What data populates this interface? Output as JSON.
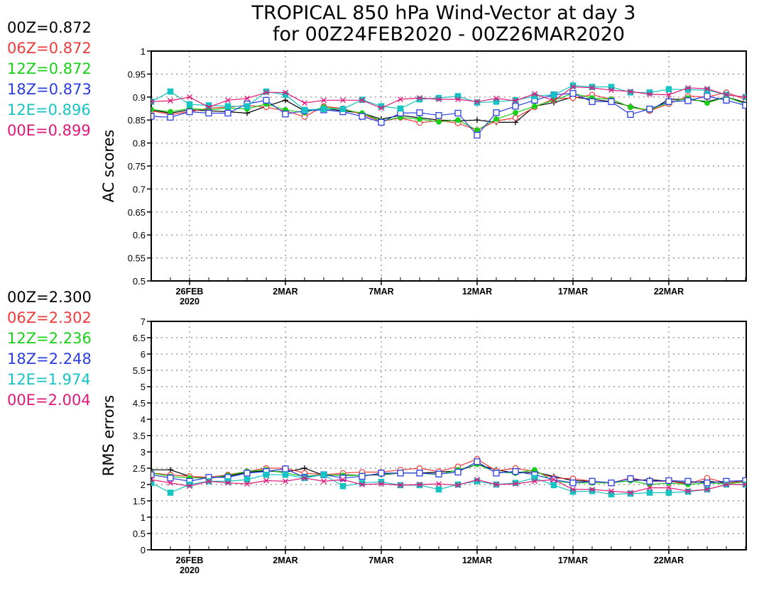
{
  "title_line1": "TROPICAL 850 hPa Wind-Vector at day 3",
  "title_line2": "for 00Z24FEB2020 - 00Z26MAR2020",
  "colors": {
    "00Z": "#000000",
    "06Z": "#ef3b3b",
    "12Z": "#17d017",
    "18Z": "#2b3de2",
    "12E": "#17c3c3",
    "00E": "#e0187a"
  },
  "series_keys": [
    "00Z",
    "06Z",
    "12Z",
    "18Z",
    "12E",
    "00E"
  ],
  "x_tick_labels": [
    "26FEB",
    "2MAR",
    "7MAR",
    "12MAR",
    "17MAR",
    "22MAR"
  ],
  "x_year_label": "2020",
  "chart_data": [
    {
      "type": "line",
      "ylabel": "AC scores",
      "ylim": [
        0.5,
        1.0
      ],
      "yticks": [
        "0.5",
        "0.55",
        "0.6",
        "0.65",
        "0.7",
        "0.75",
        "0.8",
        "0.85",
        "0.9",
        "0.95",
        "1"
      ],
      "grid": true,
      "x": [
        "24FEB",
        "25FEB",
        "26FEB",
        "27FEB",
        "28FEB",
        "29FEB",
        "1MAR",
        "2MAR",
        "3MAR",
        "4MAR",
        "5MAR",
        "6MAR",
        "7MAR",
        "8MAR",
        "9MAR",
        "10MAR",
        "11MAR",
        "12MAR",
        "13MAR",
        "14MAR",
        "15MAR",
        "16MAR",
        "17MAR",
        "18MAR",
        "19MAR",
        "20MAR",
        "21MAR",
        "22MAR",
        "23MAR",
        "24MAR",
        "25MAR",
        "26MAR"
      ],
      "legend": [
        {
          "key": "00Z",
          "text": "00Z=0.872"
        },
        {
          "key": "06Z",
          "text": "06Z=0.872"
        },
        {
          "key": "12Z",
          "text": "12Z=0.872"
        },
        {
          "key": "18Z",
          "text": "18Z=0.873"
        },
        {
          "key": "12E",
          "text": "12E=0.896"
        },
        {
          "key": "00E",
          "text": "00E=0.899"
        }
      ],
      "series": [
        {
          "name": "00Z",
          "marker": "plus",
          "values": [
            0.872,
            0.865,
            0.872,
            0.87,
            0.868,
            0.865,
            0.88,
            0.893,
            0.87,
            0.875,
            0.87,
            0.865,
            0.852,
            0.86,
            0.855,
            0.85,
            0.848,
            0.85,
            0.845,
            0.845,
            0.88,
            0.888,
            0.9,
            0.895,
            0.89,
            0.88,
            0.87,
            0.895,
            0.895,
            0.89,
            0.9,
            0.888
          ]
        },
        {
          "name": "06Z",
          "marker": "circle",
          "values": [
            0.87,
            0.862,
            0.868,
            0.876,
            0.878,
            0.882,
            0.878,
            0.87,
            0.857,
            0.88,
            0.875,
            0.862,
            0.847,
            0.855,
            0.844,
            0.849,
            0.843,
            0.828,
            0.848,
            0.855,
            0.878,
            0.896,
            0.898,
            0.905,
            0.895,
            0.878,
            0.87,
            0.885,
            0.902,
            0.9,
            0.91,
            0.895
          ]
        },
        {
          "name": "12Z",
          "marker": "dot",
          "values": [
            0.873,
            0.868,
            0.875,
            0.872,
            0.876,
            0.874,
            0.885,
            0.872,
            0.866,
            0.878,
            0.873,
            0.865,
            0.848,
            0.856,
            0.852,
            0.846,
            0.85,
            0.828,
            0.852,
            0.866,
            0.88,
            0.893,
            0.908,
            0.898,
            0.895,
            0.878,
            0.872,
            0.888,
            0.898,
            0.887,
            0.9,
            0.885
          ]
        },
        {
          "name": "18Z",
          "marker": "square-open",
          "values": [
            0.858,
            0.856,
            0.868,
            0.865,
            0.865,
            0.885,
            0.893,
            0.863,
            0.87,
            0.872,
            0.868,
            0.858,
            0.845,
            0.865,
            0.866,
            0.86,
            0.865,
            0.817,
            0.866,
            0.88,
            0.893,
            0.905,
            0.908,
            0.89,
            0.89,
            0.862,
            0.874,
            0.89,
            0.892,
            0.902,
            0.893,
            0.882
          ]
        },
        {
          "name": "12E",
          "marker": "square-filled",
          "values": [
            0.89,
            0.912,
            0.884,
            0.882,
            0.88,
            0.88,
            0.912,
            0.905,
            0.872,
            0.874,
            0.874,
            0.894,
            0.88,
            0.875,
            0.895,
            0.898,
            0.902,
            0.888,
            0.89,
            0.893,
            0.902,
            0.905,
            0.925,
            0.922,
            0.922,
            0.91,
            0.91,
            0.917,
            0.916,
            0.915,
            0.905,
            0.9
          ]
        },
        {
          "name": "00E",
          "marker": "x",
          "values": [
            0.89,
            0.892,
            0.9,
            0.878,
            0.893,
            0.897,
            0.91,
            0.91,
            0.887,
            0.893,
            0.893,
            0.893,
            0.876,
            0.895,
            0.898,
            0.895,
            0.895,
            0.89,
            0.897,
            0.892,
            0.907,
            0.892,
            0.922,
            0.92,
            0.915,
            0.912,
            0.906,
            0.905,
            0.92,
            0.918,
            0.905,
            0.9
          ]
        }
      ]
    },
    {
      "type": "line",
      "ylabel": "RMS errors",
      "ylim": [
        0,
        7
      ],
      "yticks": [
        "0",
        "0.5",
        "1",
        "1.5",
        "2",
        "2.5",
        "3",
        "3.5",
        "4",
        "4.5",
        "5",
        "5.5",
        "6",
        "6.5",
        "7"
      ],
      "grid": true,
      "x": [
        "24FEB",
        "25FEB",
        "26FEB",
        "27FEB",
        "28FEB",
        "29FEB",
        "1MAR",
        "2MAR",
        "3MAR",
        "4MAR",
        "5MAR",
        "6MAR",
        "7MAR",
        "8MAR",
        "9MAR",
        "10MAR",
        "11MAR",
        "12MAR",
        "13MAR",
        "14MAR",
        "15MAR",
        "16MAR",
        "17MAR",
        "18MAR",
        "19MAR",
        "20MAR",
        "21MAR",
        "22MAR",
        "23MAR",
        "24MAR",
        "25MAR",
        "26MAR"
      ],
      "legend": [
        {
          "key": "00Z",
          "text": "00Z=2.300"
        },
        {
          "key": "06Z",
          "text": "06Z=2.302"
        },
        {
          "key": "12Z",
          "text": "12Z=2.236"
        },
        {
          "key": "18Z",
          "text": "18Z=2.248"
        },
        {
          "key": "12E",
          "text": "12E=1.974"
        },
        {
          "key": "00E",
          "text": "00E=2.004"
        }
      ],
      "series": [
        {
          "name": "00Z",
          "marker": "plus",
          "values": [
            2.45,
            2.45,
            2.25,
            2.2,
            2.25,
            2.38,
            2.42,
            2.38,
            2.5,
            2.28,
            2.3,
            2.28,
            2.3,
            2.35,
            2.35,
            2.38,
            2.42,
            2.62,
            2.45,
            2.35,
            2.38,
            2.25,
            2.12,
            2.1,
            2.05,
            2.12,
            2.15,
            2.1,
            2.05,
            2.1,
            2.05,
            2.12
          ]
        },
        {
          "name": "06Z",
          "marker": "circle",
          "values": [
            2.35,
            2.3,
            2.25,
            2.22,
            2.3,
            2.4,
            2.5,
            2.5,
            2.35,
            2.3,
            2.35,
            2.38,
            2.38,
            2.45,
            2.5,
            2.4,
            2.55,
            2.78,
            2.42,
            2.5,
            2.4,
            2.2,
            2.18,
            2.1,
            2.05,
            2.2,
            2.1,
            2.1,
            2.02,
            2.2,
            2.05,
            2.1
          ]
        },
        {
          "name": "12Z",
          "marker": "dot",
          "values": [
            2.35,
            2.25,
            2.2,
            2.2,
            2.28,
            2.4,
            2.45,
            2.35,
            2.25,
            2.3,
            2.28,
            2.28,
            2.32,
            2.35,
            2.35,
            2.3,
            2.45,
            2.62,
            2.38,
            2.35,
            2.45,
            2.1,
            2.05,
            2.05,
            2.05,
            2.12,
            2.0,
            2.05,
            2.0,
            2.05,
            2.02,
            2.08
          ]
        },
        {
          "name": "18Z",
          "marker": "square-open",
          "values": [
            2.3,
            2.2,
            2.1,
            2.22,
            2.22,
            2.35,
            2.4,
            2.48,
            2.22,
            2.3,
            2.2,
            2.25,
            2.35,
            2.35,
            2.35,
            2.32,
            2.38,
            2.7,
            2.35,
            2.4,
            2.3,
            2.15,
            2.05,
            2.1,
            2.05,
            2.18,
            2.1,
            2.12,
            2.1,
            2.05,
            2.1,
            2.12
          ]
        },
        {
          "name": "12E",
          "marker": "square-filled",
          "values": [
            2.05,
            1.75,
            2.0,
            2.1,
            2.1,
            2.15,
            2.3,
            2.3,
            2.2,
            2.3,
            1.95,
            2.05,
            2.08,
            1.98,
            1.98,
            1.85,
            2.0,
            2.1,
            2.0,
            2.05,
            2.2,
            1.98,
            1.78,
            1.8,
            1.7,
            1.72,
            1.75,
            1.75,
            1.78,
            1.85,
            2.0,
            2.0
          ]
        },
        {
          "name": "00E",
          "marker": "x",
          "values": [
            2.15,
            2.05,
            1.95,
            2.1,
            2.05,
            2.02,
            2.12,
            2.1,
            2.2,
            2.1,
            2.15,
            2.0,
            2.02,
            1.98,
            2.0,
            2.02,
            1.98,
            2.15,
            2.0,
            2.02,
            2.1,
            2.15,
            1.85,
            1.85,
            1.8,
            1.75,
            1.9,
            1.9,
            1.8,
            1.85,
            2.0,
            2.0
          ]
        }
      ]
    }
  ]
}
